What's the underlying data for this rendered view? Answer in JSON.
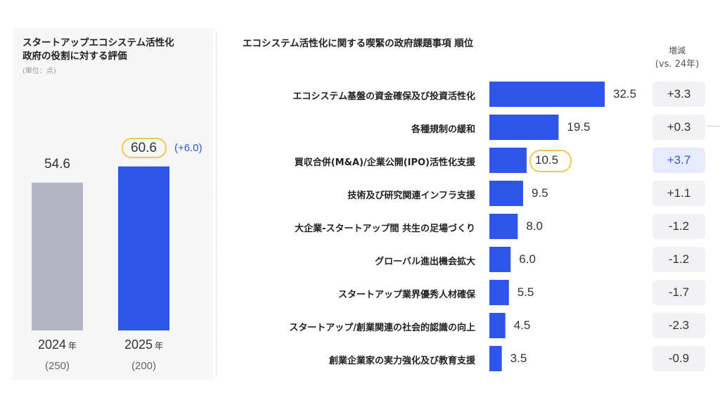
{
  "left": {
    "title_line1": "スタートアップエコシステム活性化",
    "title_line2": "政府の役割に対する評価",
    "unit": "(単位：点)",
    "diff_label": "(+6.0)",
    "year_suffix": "年"
  },
  "right": {
    "title": "エコシステム活性化に関する喫緊の政府課題事項 順位",
    "delta_header_line1": "増減",
    "delta_header_line2": "(vs. 24年)"
  },
  "colors": {
    "primary": "#2f55e6",
    "previous": "#b4b6c3",
    "highlight": "#f2c94c",
    "delta_bg": "#f2f2f4",
    "delta_highlight_bg": "#e6ebff"
  },
  "chart_data": [
    {
      "type": "bar",
      "title": "スタートアップエコシステム活性化 政府の役割に対する評価",
      "unit": "(単位：点)",
      "categories": [
        "2024",
        "2025"
      ],
      "values": [
        54.6,
        60.6
      ],
      "value_labels": [
        "54.6",
        "60.6"
      ],
      "respondents": [
        "(250)",
        "(200)"
      ],
      "change": "(+6.0)",
      "ylim": [
        0,
        100
      ]
    },
    {
      "type": "bar",
      "orientation": "horizontal",
      "title": "エコシステム活性化に関する喫緊の政府課題事項 順位",
      "categories": [
        "エコシステム基盤の資金確保及び投資活性化",
        "各種規制の緩和",
        "買収合併(M&A)/企業公開(IPO)活性化支援",
        "技術及び研究関連インフラ支援",
        "大企業-スタートアップ間 共生の足場づくり",
        "グローバル進出機会拡大",
        "スタートアップ業界優秀人材確保",
        "スタートアップ/創業関連の社会的認識の向上",
        "創業企業家の実力強化及び教育支援"
      ],
      "values": [
        32.5,
        19.5,
        10.5,
        9.5,
        8.0,
        6.0,
        5.5,
        4.5,
        3.5
      ],
      "value_labels": [
        "32.5",
        "19.5",
        "10.5",
        "9.5",
        "8.0",
        "6.0",
        "5.5",
        "4.5",
        "3.5"
      ],
      "change_vs_24": [
        "+3.3",
        "+0.3",
        "+3.7",
        "+1.1",
        "-1.2",
        "-1.2",
        "-1.7",
        "-2.3",
        "-0.9"
      ],
      "highlighted_index": 2,
      "xlim": [
        0,
        32.5
      ]
    }
  ]
}
